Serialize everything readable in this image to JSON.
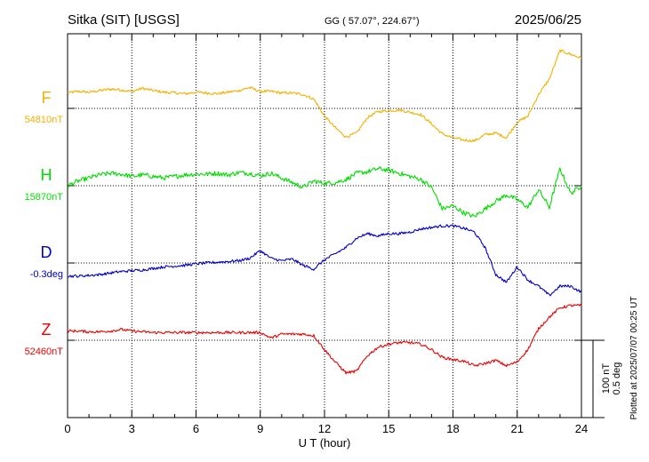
{
  "header": {
    "station": "Sitka (SIT)  [USGS]",
    "coords": "GG ( 57.07°, 224.67°)",
    "date": "2025/06/25"
  },
  "chart_data": {
    "type": "line",
    "xlabel": "U T (hour)",
    "xlim": [
      0,
      24
    ],
    "xticks": [
      0,
      3,
      6,
      9,
      12,
      15,
      18,
      21,
      24
    ],
    "scale_bar": {
      "line1": "100 nT",
      "line2": "0.5 deg"
    },
    "side_note": "Plotted at 2025/07/07 00:25 UT",
    "series": [
      {
        "name": "F",
        "baseline_label": "54810nT",
        "color": "#f2b000",
        "x": [
          0,
          0.5,
          1,
          1.5,
          2,
          2.5,
          3,
          3.5,
          4,
          4.5,
          5,
          5.5,
          6,
          6.5,
          7,
          7.5,
          8,
          8.5,
          9,
          9.5,
          10,
          10.5,
          11,
          11.5,
          12,
          12.5,
          13,
          13.5,
          14,
          14.5,
          15,
          15.5,
          16,
          16.5,
          17,
          17.5,
          18,
          18.5,
          19,
          19.5,
          20,
          20.5,
          21,
          21.5,
          22,
          22.5,
          23,
          23.5,
          24
        ],
        "y": [
          20,
          22,
          21,
          23,
          25,
          24,
          22,
          26,
          23,
          21,
          20,
          19,
          21,
          20,
          19,
          21,
          23,
          27,
          22,
          22,
          20,
          20,
          18,
          12,
          -10,
          -25,
          -37,
          -32,
          -12,
          -4,
          -3,
          -2,
          -5,
          -8,
          -20,
          -33,
          -38,
          -41,
          -42,
          -34,
          -32,
          -38,
          -18,
          -10,
          18,
          38,
          75,
          70,
          65
        ]
      },
      {
        "name": "H",
        "baseline_label": "15870nT",
        "color": "#00dd00",
        "x": [
          0,
          0.5,
          1,
          1.5,
          2,
          2.5,
          3,
          3.5,
          4,
          4.5,
          5,
          5.5,
          6,
          6.5,
          7,
          7.5,
          8,
          8.5,
          9,
          9.5,
          10,
          10.5,
          11,
          11.5,
          12,
          12.5,
          13,
          13.5,
          14,
          14.5,
          15,
          15.5,
          16,
          16.5,
          17,
          17.5,
          18,
          18.5,
          19,
          19.5,
          20,
          20.5,
          21,
          21.5,
          22,
          22.5,
          23,
          23.5,
          24
        ],
        "y": [
          0,
          6,
          10,
          14,
          16,
          15,
          12,
          14,
          12,
          10,
          12,
          14,
          15,
          15,
          16,
          14,
          17,
          16,
          13,
          16,
          10,
          4,
          -2,
          6,
          3,
          4,
          8,
          16,
          18,
          22,
          20,
          16,
          12,
          8,
          -2,
          -30,
          -26,
          -35,
          -40,
          -30,
          -20,
          -12,
          -18,
          -28,
          -5,
          -28,
          22,
          -10,
          0
        ]
      },
      {
        "name": "D",
        "baseline_label": "-0.3deg",
        "color": "#0000cc",
        "x": [
          0,
          0.5,
          1,
          1.5,
          2,
          2.5,
          3,
          3.5,
          4,
          4.5,
          5,
          5.5,
          6,
          6.5,
          7,
          7.5,
          8,
          8.5,
          9,
          9.5,
          10,
          10.5,
          11,
          11.5,
          12,
          12.5,
          13,
          13.5,
          14,
          14.5,
          15,
          15.5,
          16,
          16.5,
          17,
          17.5,
          18,
          18.5,
          19,
          19.5,
          20,
          20.5,
          21,
          21.5,
          22,
          22.5,
          23,
          23.5,
          24
        ],
        "y": [
          -17,
          -17,
          -16,
          -15,
          -13,
          -11,
          -10,
          -9,
          -7,
          -5,
          -4,
          -3,
          -1,
          0,
          1,
          2,
          3,
          6,
          16,
          6,
          3,
          5,
          -3,
          -8,
          4,
          12,
          20,
          32,
          38,
          35,
          38,
          38,
          40,
          44,
          46,
          48,
          48,
          45,
          40,
          20,
          -15,
          -25,
          -5,
          -22,
          -30,
          -42,
          -30,
          -30,
          -38
        ]
      },
      {
        "name": "Z",
        "baseline_label": "52460nT",
        "color": "#ee0000",
        "x": [
          0,
          0.5,
          1,
          1.5,
          2,
          2.5,
          3,
          3.5,
          4,
          4.5,
          5,
          5.5,
          6,
          6.5,
          7,
          7.5,
          8,
          8.5,
          9,
          9.5,
          10,
          10.5,
          11,
          11.5,
          12,
          12.5,
          13,
          13.5,
          14,
          14.5,
          15,
          15.5,
          16,
          16.5,
          17,
          17.5,
          18,
          18.5,
          19,
          19.5,
          20,
          20.5,
          21,
          21.5,
          22,
          22.5,
          23,
          23.5,
          24
        ],
        "y": [
          12,
          12,
          11,
          11,
          12,
          14,
          12,
          11,
          10,
          10,
          10,
          10,
          10,
          10,
          10,
          10,
          10,
          10,
          10,
          3,
          8,
          8,
          8,
          6,
          -12,
          -28,
          -42,
          -40,
          -20,
          -9,
          -5,
          -3,
          -3,
          -5,
          -12,
          -22,
          -25,
          -27,
          -33,
          -30,
          -26,
          -33,
          -28,
          -12,
          15,
          30,
          42,
          45,
          45
        ]
      }
    ]
  }
}
